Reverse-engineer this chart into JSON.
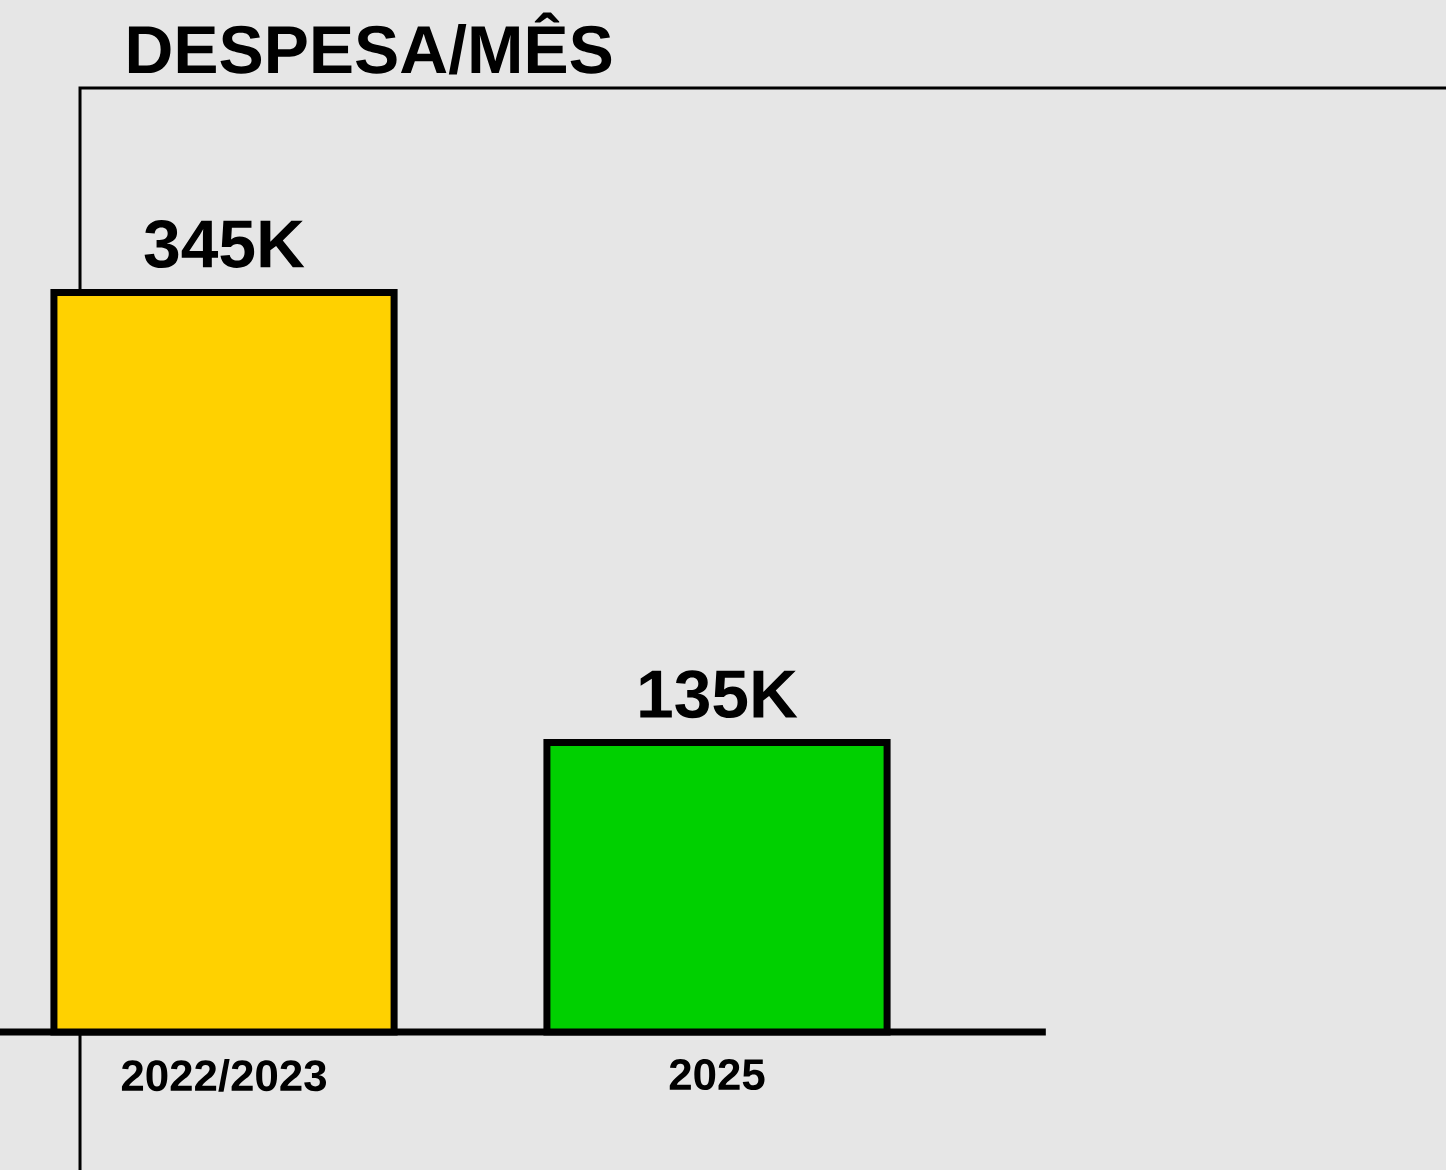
{
  "chart_data": {
    "type": "bar",
    "title": "DESPESA/MÊS",
    "categories": [
      "2022/2023",
      "2025"
    ],
    "values": [
      345000,
      135000
    ],
    "colors": [
      "#ffd100",
      "#00d000"
    ],
    "value_labels": [
      "345K",
      "135K"
    ]
  }
}
